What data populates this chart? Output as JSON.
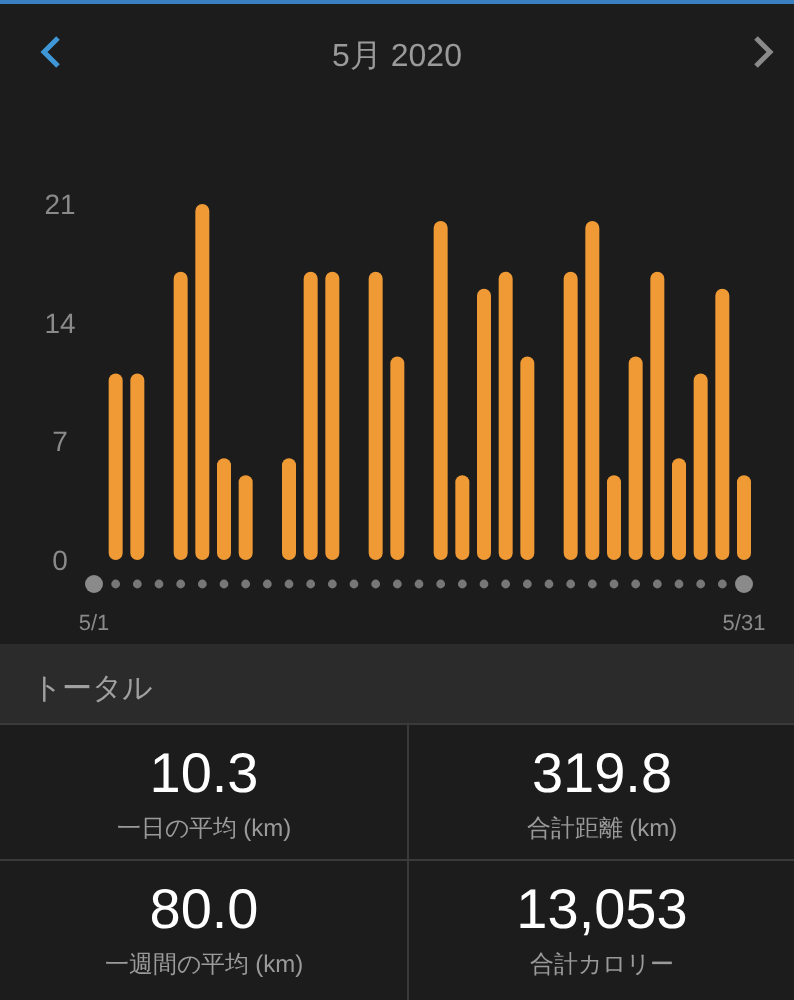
{
  "chart_data": [
    {
      "type": "bar",
      "title": "5月 2020",
      "categories": [
        "5/1",
        null,
        null,
        null,
        null,
        null,
        null,
        null,
        null,
        null,
        null,
        null,
        null,
        null,
        null,
        null,
        null,
        null,
        null,
        null,
        null,
        null,
        null,
        null,
        null,
        null,
        null,
        null,
        null,
        null,
        "5/31"
      ],
      "values": [
        0,
        11,
        11,
        0,
        17,
        21,
        6,
        5,
        0,
        6,
        17,
        17,
        0,
        17,
        12,
        0,
        20,
        5,
        16,
        17,
        12,
        0,
        17,
        20,
        5,
        12,
        17,
        6,
        11,
        16,
        5
      ],
      "color": "#f09a36",
      "ylim": [
        0,
        21
      ],
      "yticks": [
        0,
        7,
        14,
        21
      ]
    },
    {
      "type": "other",
      "title": "トータル",
      "annotations": [
        "10.3",
        "一日の平均 (km)",
        "319.8",
        "合計距離 (km)",
        "80.0",
        "一週間の平均 (km)",
        "13,053",
        "合計カロリー"
      ]
    }
  ]
}
